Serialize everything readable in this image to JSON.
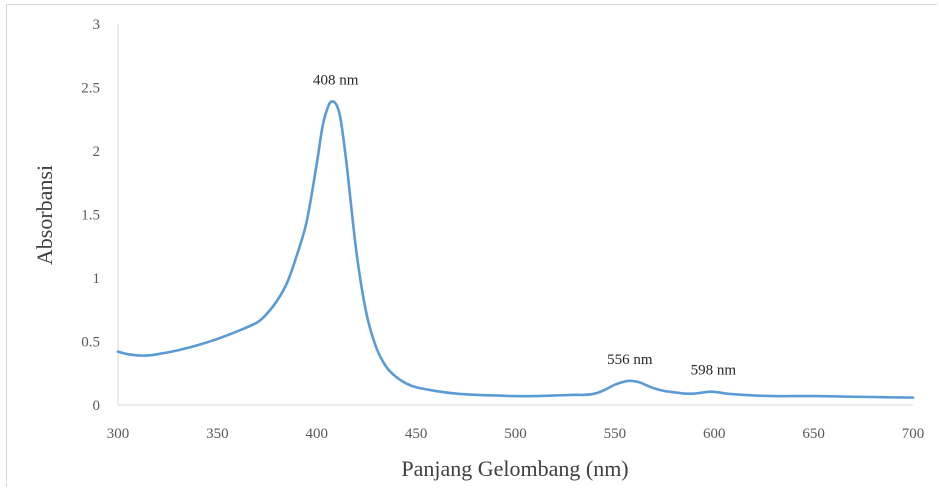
{
  "chart_data": {
    "type": "line",
    "title": "",
    "xlabel": "Panjang Gelombang (nm)",
    "ylabel": "Absorbansi",
    "xlim": [
      300,
      700
    ],
    "ylim": [
      0,
      3
    ],
    "x_ticks": [
      300,
      350,
      400,
      450,
      500,
      550,
      600,
      650,
      700
    ],
    "y_ticks": [
      0,
      0.5,
      1,
      1.5,
      2,
      2.5,
      3
    ],
    "y_tick_labels": [
      "0",
      "0.5",
      "1",
      "1.5",
      "2",
      "2.5",
      "3"
    ],
    "grid": false,
    "legend": "none",
    "series_color": "#5b9bd5",
    "series": [
      {
        "x": [
          300,
          305,
          310,
          315,
          320,
          330,
          340,
          350,
          360,
          370,
          375,
          380,
          385,
          390,
          395,
          400,
          403,
          406,
          408,
          410,
          412,
          415,
          420,
          425,
          430,
          435,
          440,
          445,
          450,
          460,
          470,
          480,
          490,
          500,
          510,
          520,
          530,
          535,
          540,
          545,
          550,
          555,
          558,
          562,
          566,
          570,
          575,
          580,
          585,
          590,
          595,
          598,
          602,
          606,
          610,
          620,
          630,
          640,
          650,
          660,
          670,
          680,
          690,
          700
        ],
        "y": [
          0.42,
          0.4,
          0.39,
          0.39,
          0.4,
          0.43,
          0.47,
          0.52,
          0.58,
          0.65,
          0.72,
          0.82,
          0.96,
          1.18,
          1.45,
          1.9,
          2.2,
          2.36,
          2.39,
          2.36,
          2.25,
          1.9,
          1.2,
          0.72,
          0.45,
          0.3,
          0.22,
          0.17,
          0.14,
          0.11,
          0.09,
          0.08,
          0.075,
          0.07,
          0.07,
          0.075,
          0.08,
          0.08,
          0.09,
          0.12,
          0.16,
          0.185,
          0.19,
          0.18,
          0.155,
          0.13,
          0.11,
          0.1,
          0.09,
          0.09,
          0.1,
          0.105,
          0.1,
          0.09,
          0.085,
          0.075,
          0.07,
          0.07,
          0.07,
          0.068,
          0.065,
          0.063,
          0.06,
          0.058
        ]
      }
    ],
    "annotations": [
      {
        "text": "408 nm",
        "x": 408,
        "y": 2.39
      },
      {
        "text": "556 nm",
        "x": 556,
        "y": 0.19
      },
      {
        "text": "598 nm",
        "x": 598,
        "y": 0.105
      }
    ]
  }
}
